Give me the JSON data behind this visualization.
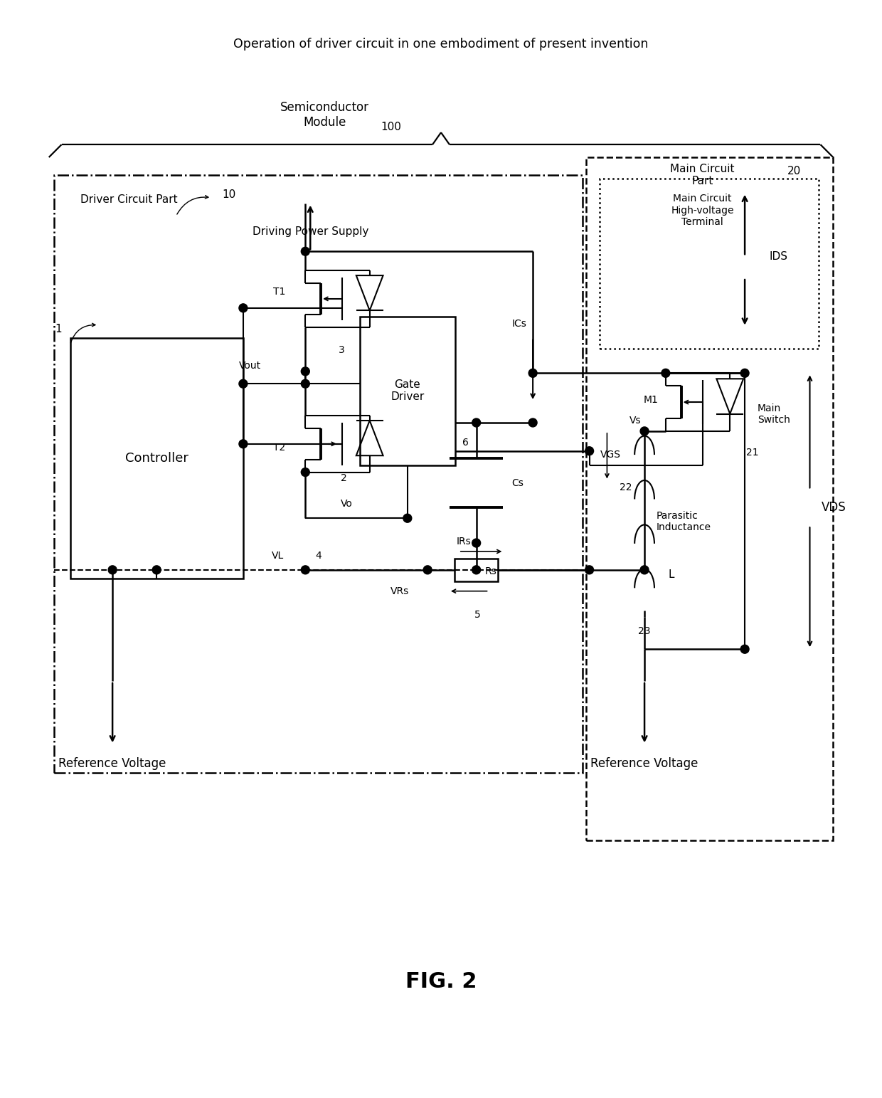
{
  "bg_color": "#ffffff",
  "line_color": "#000000",
  "title": "Operation of driver circuit in one embodiment of present invention",
  "fig_label": "FIG. 2",
  "semiconductor_module": "Semiconductor\nModule",
  "semiconductor_module_num": "100",
  "main_circuit_part": "Main Circuit\nPart",
  "main_circuit_part_num": "20",
  "main_circuit_hv_terminal": "Main Circuit\nHigh-voltage\nTerminal",
  "IDS": "IDS",
  "driver_circuit_part": "Driver Circuit Part",
  "driver_circuit_part_num": "10",
  "driving_power_supply": "Driving Power Supply",
  "gate_driver": "Gate\nDriver",
  "controller": "Controller",
  "controller_num": "1",
  "T1": "T1",
  "T2": "T2",
  "Vout": "Vout",
  "Vo": "Vo",
  "VL": "VL",
  "num3": "3",
  "num4": "4",
  "num2": "2",
  "ICs": "ICs",
  "num6": "6",
  "Cs": "Cs",
  "IRs": "IRs",
  "Rs": "Rs",
  "VRs": "VRs",
  "num5": "5",
  "M1": "M1",
  "main_switch": "Main\nSwitch",
  "VGS": "VGS",
  "num21": "21",
  "num22": "22",
  "Vs": "Vs",
  "parasitic_inductance": "Parasitic\nInductance",
  "L": "L",
  "num23": "23",
  "VDS": "VDS",
  "ref_voltage_left": "Reference Voltage",
  "ref_voltage_right": "Reference Voltage"
}
